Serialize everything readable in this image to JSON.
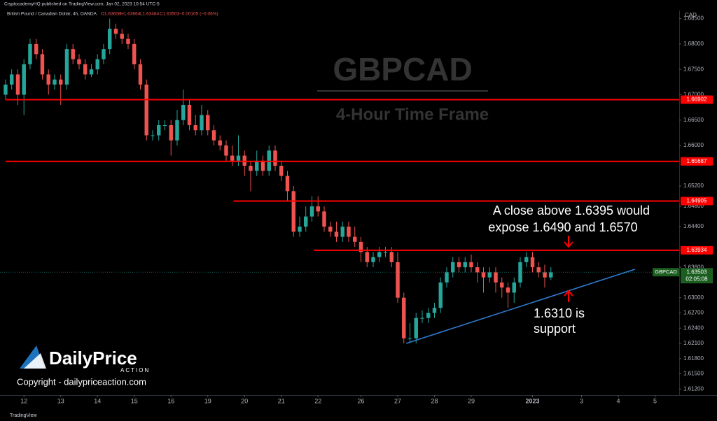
{
  "header": {
    "publisher": "CryptocademyHQ published on TradingView.com, Jan 02, 2023 10:54 UTC-5",
    "symbol": "British Pound / Canadian Dollar, 4h, OANDA",
    "ohlc": [
      "O1.63608",
      "H1.63664",
      "L1.63484",
      "C1.63503",
      "−0.00105 (−0.06%)"
    ]
  },
  "chart_data": {
    "type": "candlestick",
    "currency": "CAD",
    "watermark": [
      "GBPCAD",
      "4-Hour Time Frame"
    ],
    "x": [
      0,
      1,
      2,
      3,
      4,
      5,
      6,
      7,
      8,
      9,
      10,
      11,
      12,
      13,
      14,
      15,
      16,
      17,
      18,
      19,
      20,
      21,
      22,
      23,
      24,
      25,
      26,
      27,
      28,
      29,
      30,
      31,
      32,
      33,
      34,
      35,
      36,
      37,
      38,
      39,
      40,
      41,
      42,
      43,
      44,
      45,
      46,
      47,
      48,
      49,
      50,
      51,
      52,
      53,
      54,
      55,
      56,
      57,
      58,
      59,
      60,
      61,
      62,
      63,
      64,
      65,
      66,
      67,
      68,
      69,
      70,
      71,
      72,
      73,
      74,
      75,
      76,
      77,
      78,
      79,
      80,
      81,
      82,
      83,
      84,
      85,
      86,
      87,
      88,
      89
    ],
    "open": [
      1.67,
      1.672,
      1.674,
      1.67,
      1.676,
      1.68,
      1.678,
      1.674,
      1.672,
      1.673,
      1.672,
      1.679,
      1.677,
      1.676,
      1.674,
      1.675,
      1.677,
      1.679,
      1.683,
      1.682,
      1.681,
      1.68,
      1.676,
      1.672,
      1.662,
      1.662,
      1.664,
      1.664,
      1.661,
      1.665,
      1.668,
      1.664,
      1.663,
      1.666,
      1.663,
      1.661,
      1.66,
      1.658,
      1.657,
      1.658,
      1.656,
      1.655,
      1.657,
      1.655,
      1.659,
      1.656,
      1.654,
      1.651,
      1.643,
      1.644,
      1.646,
      1.648,
      1.647,
      1.644,
      1.643,
      1.642,
      1.644,
      1.642,
      1.641,
      1.639,
      1.637,
      1.638,
      1.639,
      1.639,
      1.637,
      1.63,
      1.622,
      1.622,
      1.626,
      1.626,
      1.627,
      1.628,
      1.633,
      1.635,
      1.637,
      1.636,
      1.637,
      1.636,
      1.635,
      1.634,
      1.635,
      1.633,
      1.632,
      1.631,
      1.633,
      1.637,
      1.638,
      1.636,
      1.635,
      1.634
    ],
    "high": [
      1.673,
      1.675,
      1.675,
      1.677,
      1.681,
      1.681,
      1.679,
      1.675,
      1.674,
      1.674,
      1.68,
      1.68,
      1.678,
      1.677,
      1.676,
      1.678,
      1.68,
      1.685,
      1.684,
      1.683,
      1.682,
      1.681,
      1.677,
      1.673,
      1.663,
      1.665,
      1.665,
      1.665,
      1.667,
      1.671,
      1.669,
      1.666,
      1.668,
      1.667,
      1.664,
      1.662,
      1.661,
      1.66,
      1.662,
      1.659,
      1.657,
      1.659,
      1.658,
      1.66,
      1.66,
      1.657,
      1.655,
      1.652,
      1.646,
      1.648,
      1.65,
      1.65,
      1.648,
      1.645,
      1.645,
      1.645,
      1.645,
      1.644,
      1.642,
      1.64,
      1.639,
      1.64,
      1.64,
      1.64,
      1.639,
      1.631,
      1.625,
      1.627,
      1.6275,
      1.628,
      1.629,
      1.634,
      1.636,
      1.638,
      1.638,
      1.638,
      1.6385,
      1.637,
      1.636,
      1.636,
      1.636,
      1.634,
      1.633,
      1.634,
      1.638,
      1.639,
      1.639,
      1.637,
      1.6365,
      1.636
    ],
    "low": [
      1.669,
      1.671,
      1.668,
      1.666,
      1.675,
      1.677,
      1.673,
      1.67,
      1.671,
      1.668,
      1.671,
      1.676,
      1.675,
      1.673,
      1.6735,
      1.674,
      1.676,
      1.678,
      1.681,
      1.68,
      1.679,
      1.675,
      1.671,
      1.661,
      1.661,
      1.661,
      1.663,
      1.658,
      1.66,
      1.664,
      1.663,
      1.662,
      1.662,
      1.662,
      1.66,
      1.659,
      1.657,
      1.656,
      1.656,
      1.654,
      1.651,
      1.654,
      1.654,
      1.654,
      1.655,
      1.653,
      1.649,
      1.642,
      1.642,
      1.643,
      1.645,
      1.646,
      1.643,
      1.642,
      1.641,
      1.641,
      1.641,
      1.64,
      1.637,
      1.636,
      1.636,
      1.637,
      1.638,
      1.636,
      1.629,
      1.621,
      1.621,
      1.621,
      1.625,
      1.625,
      1.626,
      1.627,
      1.632,
      1.634,
      1.635,
      1.635,
      1.635,
      1.633,
      1.631,
      1.633,
      1.631,
      1.63,
      1.628,
      1.629,
      1.632,
      1.636,
      1.635,
      1.634,
      1.632,
      1.6335
    ],
    "close": [
      1.672,
      1.674,
      1.67,
      1.676,
      1.68,
      1.678,
      1.674,
      1.672,
      1.673,
      1.672,
      1.679,
      1.677,
      1.676,
      1.674,
      1.675,
      1.677,
      1.679,
      1.683,
      1.682,
      1.681,
      1.68,
      1.676,
      1.672,
      1.662,
      1.662,
      1.664,
      1.664,
      1.661,
      1.665,
      1.668,
      1.664,
      1.663,
      1.666,
      1.663,
      1.661,
      1.66,
      1.658,
      1.657,
      1.658,
      1.656,
      1.655,
      1.657,
      1.655,
      1.659,
      1.656,
      1.654,
      1.651,
      1.643,
      1.644,
      1.646,
      1.648,
      1.647,
      1.644,
      1.643,
      1.642,
      1.644,
      1.642,
      1.641,
      1.639,
      1.637,
      1.638,
      1.639,
      1.639,
      1.637,
      1.63,
      1.622,
      1.622,
      1.626,
      1.626,
      1.627,
      1.628,
      1.633,
      1.635,
      1.637,
      1.636,
      1.637,
      1.636,
      1.635,
      1.634,
      1.635,
      1.633,
      1.632,
      1.631,
      1.633,
      1.637,
      1.638,
      1.636,
      1.635,
      1.634,
      1.635
    ],
    "xlim": [
      -0.91,
      109.94
    ],
    "ylim": [
      1.6108,
      1.6866
    ],
    "xticks": [
      {
        "value": 3,
        "label": "12"
      },
      {
        "value": 9,
        "label": "13"
      },
      {
        "value": 15,
        "label": "14"
      },
      {
        "value": 21,
        "label": "15"
      },
      {
        "value": 27,
        "label": "16"
      },
      {
        "value": 33,
        "label": "19"
      },
      {
        "value": 39,
        "label": "20"
      },
      {
        "value": 45,
        "label": "21"
      },
      {
        "value": 51,
        "label": "22"
      },
      {
        "value": 58,
        "label": "26"
      },
      {
        "value": 64,
        "label": "27"
      },
      {
        "value": 70,
        "label": "28"
      },
      {
        "value": 76,
        "label": "29"
      },
      {
        "value": 86,
        "label": "2023"
      },
      {
        "value": 94,
        "label": "3"
      },
      {
        "value": 100,
        "label": "4"
      },
      {
        "value": 106,
        "label": "5"
      }
    ],
    "yticks": [
      {
        "value": 1.685,
        "label": "1.68500"
      },
      {
        "value": 1.68,
        "label": "1.68000"
      },
      {
        "value": 1.675,
        "label": "1.67500"
      },
      {
        "value": 1.67,
        "label": "1.67000"
      },
      {
        "value": 1.665,
        "label": "1.66500"
      },
      {
        "value": 1.66,
        "label": "1.66000"
      },
      {
        "value": 1.652,
        "label": "1.65200"
      },
      {
        "value": 1.648,
        "label": "1.64800"
      },
      {
        "value": 1.644,
        "label": "1.64400"
      },
      {
        "value": 1.636,
        "label": "1.63600"
      },
      {
        "value": 1.63,
        "label": "1.63000"
      },
      {
        "value": 1.627,
        "label": "1.62700"
      },
      {
        "value": 1.624,
        "label": "1.62400"
      },
      {
        "value": 1.621,
        "label": "1.62100"
      },
      {
        "value": 1.618,
        "label": "1.61800"
      },
      {
        "value": 1.615,
        "label": "1.61500"
      },
      {
        "value": 1.612,
        "label": "1.61200"
      }
    ],
    "up_color": "#26a69a",
    "down_color": "#ef5350",
    "level_color": "#ff0000",
    "levels": [
      {
        "value": 1.66902,
        "label": "1.66902",
        "start": 0
      },
      {
        "value": 1.65687,
        "label": "1.65687",
        "start": 0
      },
      {
        "value": 1.64905,
        "label": "1.64905",
        "start": 37.2
      },
      {
        "value": 1.63934,
        "label": "1.63934",
        "start": 50.3
      }
    ],
    "trendline": {
      "x": [
        65.4,
        102.7
      ],
      "y": [
        1.621,
        1.6356
      ],
      "color": "#2e7bcf"
    },
    "last_price": {
      "symbol": "GBPCAD",
      "value": 1.63503,
      "label": "1.63503",
      "countdown": "02:05:08",
      "color": "#1b5e20"
    },
    "annotations": [
      {
        "text": [
          "A close above 1.6395 would",
          "expose 1.6490 and 1.6570"
        ]
      },
      {
        "text": [
          "1.6310 is",
          "support"
        ]
      }
    ]
  },
  "branding": {
    "logo": [
      "DailyPrice",
      "ACTION"
    ],
    "copyright": "Copyright - dailypriceaction.com",
    "footer": "TradingView"
  }
}
